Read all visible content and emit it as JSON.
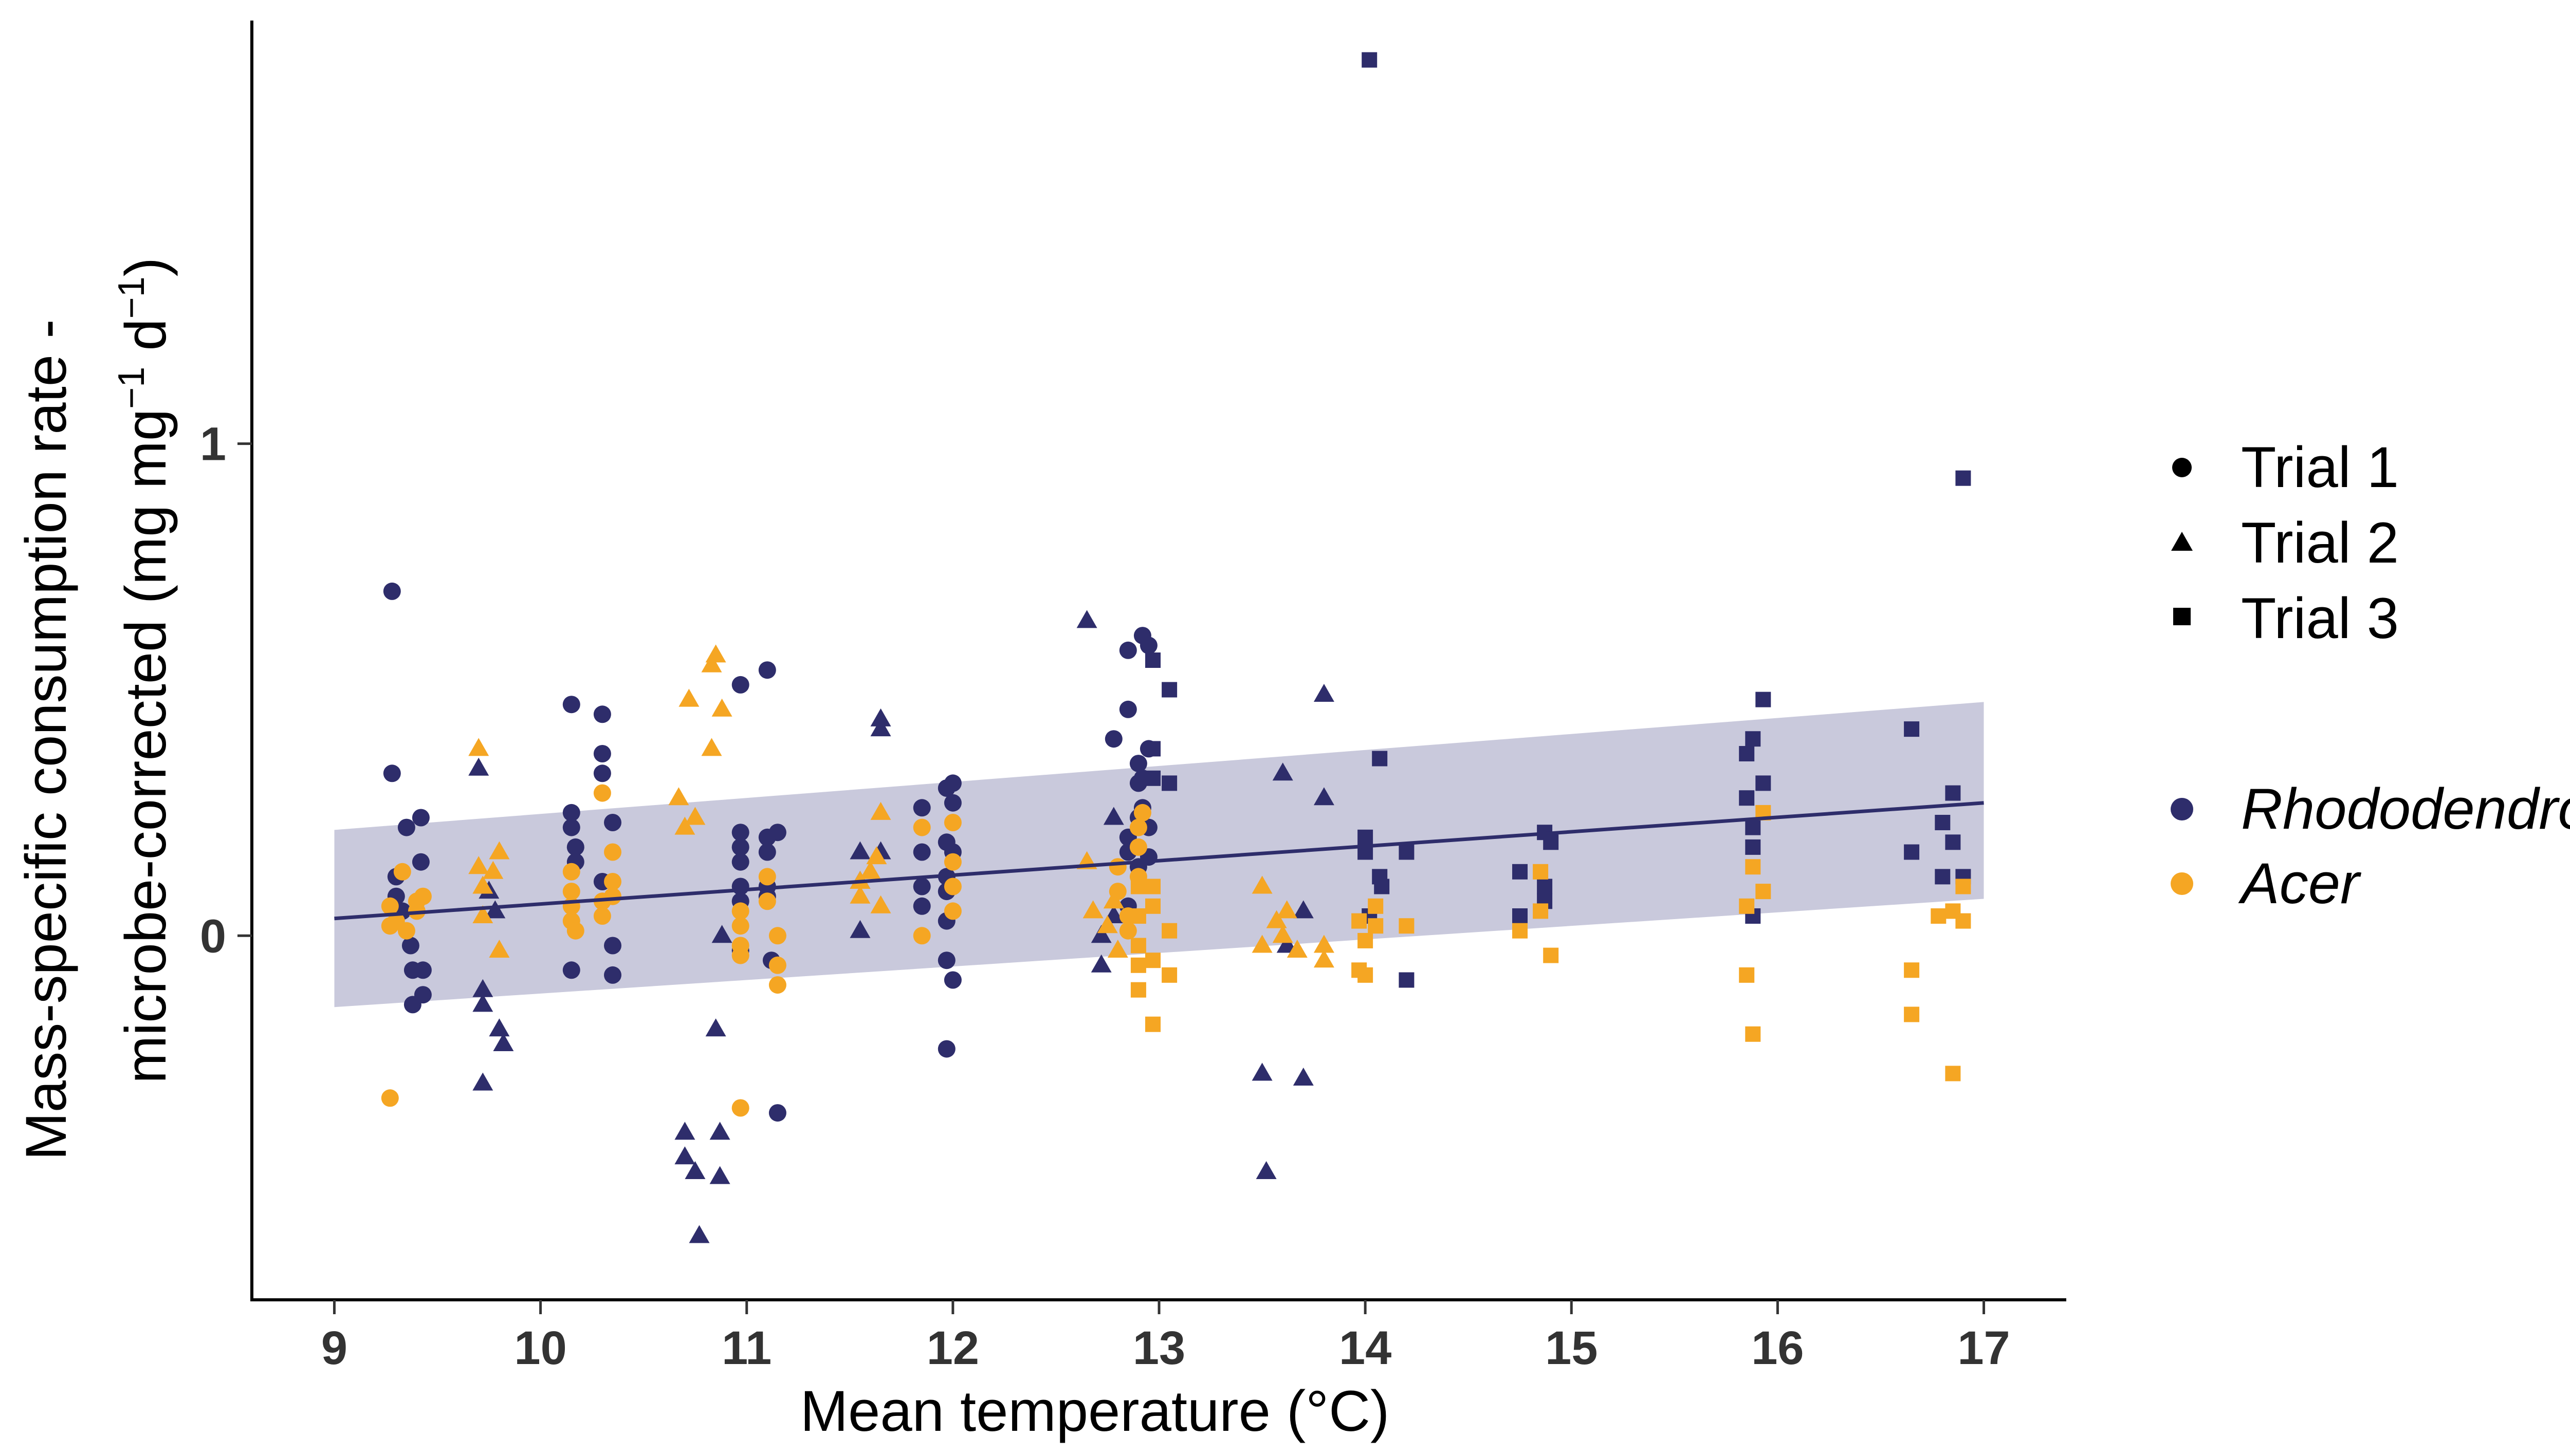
{
  "chart_data": {
    "type": "scatter",
    "title": "",
    "xlabel": "Mean temperature (°C)",
    "ylabel_line1": "Mass-specific consumption rate -",
    "ylabel_line2_prefix": "microbe-corrected (mg mg",
    "ylabel_sup1": "−1",
    "ylabel_mid": " d",
    "ylabel_sup2": "−1",
    "ylabel_suffix": ")",
    "xlim": [
      8.6,
      17.4
    ],
    "ylim": [
      -0.74,
      1.86
    ],
    "x_ticks": [
      9,
      10,
      11,
      12,
      13,
      14,
      15,
      16,
      17
    ],
    "x_tick_labels": [
      "9",
      "10",
      "11",
      "12",
      "13",
      "14",
      "15",
      "16",
      "17"
    ],
    "y_ticks": [
      0,
      1
    ],
    "y_tick_labels": [
      "0",
      "1"
    ],
    "grid": false,
    "legend_position": "right",
    "legend_shape": {
      "title": "",
      "entries": [
        {
          "label": "Trial 1",
          "shape": "circle"
        },
        {
          "label": "Trial 2",
          "shape": "triangle"
        },
        {
          "label": "Trial 3",
          "shape": "square"
        }
      ]
    },
    "legend_species": {
      "title": "",
      "entries": [
        {
          "label": "Rhododendron",
          "color": "#2e2d6b"
        },
        {
          "label": "Acer",
          "color": "#f5a623"
        }
      ]
    },
    "colors": {
      "Rhododendron": "#2e2d6b",
      "Acer": "#f5a623",
      "fit_line": "#2e2d6b",
      "ribbon": "#c9c9dc"
    },
    "fit": {
      "x": [
        9,
        17
      ],
      "y": [
        0.035,
        0.27
      ],
      "ci_lower": [
        -0.145,
        0.075
      ],
      "ci_upper": [
        0.215,
        0.475
      ]
    },
    "series": [
      {
        "species": "Rhododendron",
        "trial": 1,
        "shape": "circle",
        "color": "#2e2d6b",
        "points": [
          [
            9.28,
            0.7
          ],
          [
            9.28,
            0.33
          ],
          [
            9.3,
            0.12
          ],
          [
            9.3,
            0.08
          ],
          [
            9.33,
            0.05
          ],
          [
            9.35,
            0.22
          ],
          [
            9.37,
            -0.02
          ],
          [
            9.38,
            -0.07
          ],
          [
            9.38,
            -0.14
          ],
          [
            9.42,
            0.24
          ],
          [
            9.42,
            0.15
          ],
          [
            9.43,
            -0.07
          ],
          [
            9.43,
            -0.12
          ],
          [
            10.15,
            0.47
          ],
          [
            10.15,
            0.25
          ],
          [
            10.15,
            0.22
          ],
          [
            10.17,
            0.18
          ],
          [
            10.17,
            0.15
          ],
          [
            10.15,
            -0.07
          ],
          [
            10.3,
            0.45
          ],
          [
            10.3,
            0.37
          ],
          [
            10.3,
            0.33
          ],
          [
            10.3,
            0.11
          ],
          [
            10.35,
            0.23
          ],
          [
            10.35,
            -0.02
          ],
          [
            10.35,
            -0.08
          ],
          [
            10.97,
            0.51
          ],
          [
            10.97,
            0.21
          ],
          [
            10.97,
            0.18
          ],
          [
            10.97,
            0.15
          ],
          [
            10.97,
            0.1
          ],
          [
            10.97,
            0.07
          ],
          [
            10.97,
            -0.03
          ],
          [
            11.1,
            0.54
          ],
          [
            11.1,
            0.2
          ],
          [
            11.1,
            0.17
          ],
          [
            11.1,
            0.1
          ],
          [
            11.1,
            0.08
          ],
          [
            11.12,
            -0.05
          ],
          [
            11.15,
            0.21
          ],
          [
            11.15,
            -0.36
          ],
          [
            11.85,
            0.26
          ],
          [
            11.85,
            0.17
          ],
          [
            11.85,
            0.1
          ],
          [
            11.85,
            0.06
          ],
          [
            11.97,
            0.3
          ],
          [
            11.97,
            0.19
          ],
          [
            11.97,
            0.12
          ],
          [
            11.97,
            0.09
          ],
          [
            11.97,
            0.03
          ],
          [
            11.97,
            -0.05
          ],
          [
            11.97,
            -0.23
          ],
          [
            12.0,
            0.31
          ],
          [
            12.0,
            0.27
          ],
          [
            12.0,
            0.17
          ],
          [
            12.0,
            -0.09
          ],
          [
            12.78,
            0.4
          ],
          [
            12.85,
            0.58
          ],
          [
            12.85,
            0.46
          ],
          [
            12.85,
            0.2
          ],
          [
            12.85,
            0.17
          ],
          [
            12.85,
            0.06
          ],
          [
            12.9,
            0.35
          ],
          [
            12.9,
            0.31
          ],
          [
            12.9,
            0.24
          ],
          [
            12.9,
            0.14
          ],
          [
            12.92,
            0.61
          ],
          [
            12.92,
            0.32
          ],
          [
            12.92,
            0.26
          ],
          [
            12.95,
            0.59
          ],
          [
            12.95,
            0.38
          ],
          [
            12.95,
            0.22
          ],
          [
            12.95,
            0.16
          ]
        ]
      },
      {
        "species": "Rhododendron",
        "trial": 2,
        "shape": "triangle",
        "color": "#2e2d6b",
        "points": [
          [
            9.7,
            0.34
          ],
          [
            9.72,
            -0.11
          ],
          [
            9.72,
            -0.14
          ],
          [
            9.72,
            -0.3
          ],
          [
            9.75,
            0.09
          ],
          [
            9.78,
            0.05
          ],
          [
            9.8,
            -0.19
          ],
          [
            9.82,
            -0.22
          ],
          [
            10.7,
            -0.4
          ],
          [
            10.7,
            -0.45
          ],
          [
            10.75,
            -0.48
          ],
          [
            10.77,
            -0.61
          ],
          [
            10.85,
            -0.19
          ],
          [
            10.87,
            -0.4
          ],
          [
            10.87,
            -0.49
          ],
          [
            10.88,
            0.0
          ],
          [
            11.55,
            0.17
          ],
          [
            11.55,
            0.11
          ],
          [
            11.55,
            0.01
          ],
          [
            11.65,
            0.44
          ],
          [
            11.65,
            0.42
          ],
          [
            11.65,
            0.17
          ],
          [
            12.65,
            0.64
          ],
          [
            12.72,
            0.0
          ],
          [
            12.72,
            -0.06
          ],
          [
            12.78,
            0.24
          ],
          [
            12.78,
            0.04
          ],
          [
            13.5,
            -0.28
          ],
          [
            13.52,
            -0.48
          ],
          [
            13.6,
            0.33
          ],
          [
            13.62,
            -0.02
          ],
          [
            13.7,
            0.05
          ],
          [
            13.7,
            -0.29
          ],
          [
            13.8,
            0.49
          ],
          [
            13.8,
            0.28
          ]
        ]
      },
      {
        "species": "Rhododendron",
        "trial": 3,
        "shape": "square",
        "color": "#2e2d6b",
        "points": [
          [
            12.97,
            0.56
          ],
          [
            12.97,
            0.38
          ],
          [
            12.97,
            0.32
          ],
          [
            13.05,
            0.5
          ],
          [
            13.05,
            0.31
          ],
          [
            14.02,
            1.78
          ],
          [
            14.0,
            0.2
          ],
          [
            14.0,
            0.17
          ],
          [
            14.02,
            0.04
          ],
          [
            14.07,
            0.36
          ],
          [
            14.07,
            0.12
          ],
          [
            14.08,
            0.1
          ],
          [
            14.2,
            0.17
          ],
          [
            14.2,
            -0.09
          ],
          [
            14.75,
            0.13
          ],
          [
            14.75,
            0.04
          ],
          [
            14.87,
            0.21
          ],
          [
            14.87,
            0.1
          ],
          [
            14.87,
            0.07
          ],
          [
            14.9,
            0.19
          ],
          [
            15.85,
            0.37
          ],
          [
            15.85,
            0.28
          ],
          [
            15.88,
            0.4
          ],
          [
            15.88,
            0.22
          ],
          [
            15.88,
            0.18
          ],
          [
            15.88,
            0.04
          ],
          [
            15.93,
            0.48
          ],
          [
            15.93,
            0.31
          ],
          [
            16.65,
            0.42
          ],
          [
            16.65,
            0.17
          ],
          [
            16.8,
            0.23
          ],
          [
            16.8,
            0.12
          ],
          [
            16.85,
            0.29
          ],
          [
            16.85,
            0.19
          ],
          [
            16.9,
            0.93
          ],
          [
            16.9,
            0.12
          ]
        ]
      },
      {
        "species": "Acer",
        "trial": 1,
        "shape": "circle",
        "color": "#f5a623",
        "points": [
          [
            9.27,
            -0.33
          ],
          [
            9.27,
            0.06
          ],
          [
            9.27,
            0.02
          ],
          [
            9.3,
            0.03
          ],
          [
            9.33,
            0.13
          ],
          [
            9.35,
            0.01
          ],
          [
            9.4,
            0.07
          ],
          [
            9.4,
            0.05
          ],
          [
            9.43,
            0.08
          ],
          [
            10.15,
            0.13
          ],
          [
            10.15,
            0.09
          ],
          [
            10.15,
            0.06
          ],
          [
            10.15,
            0.03
          ],
          [
            10.17,
            0.01
          ],
          [
            10.3,
            0.29
          ],
          [
            10.3,
            0.07
          ],
          [
            10.3,
            0.04
          ],
          [
            10.35,
            0.17
          ],
          [
            10.35,
            0.11
          ],
          [
            10.35,
            0.08
          ],
          [
            10.97,
            0.05
          ],
          [
            10.97,
            0.02
          ],
          [
            10.97,
            -0.02
          ],
          [
            10.97,
            -0.04
          ],
          [
            10.97,
            -0.35
          ],
          [
            11.1,
            0.12
          ],
          [
            11.1,
            0.07
          ],
          [
            11.15,
            0.0
          ],
          [
            11.15,
            -0.06
          ],
          [
            11.15,
            -0.1
          ],
          [
            11.85,
            0.22
          ],
          [
            11.85,
            0.0
          ],
          [
            12.0,
            0.23
          ],
          [
            12.0,
            0.15
          ],
          [
            12.0,
            0.1
          ],
          [
            12.0,
            0.05
          ],
          [
            12.8,
            0.14
          ],
          [
            12.8,
            0.09
          ],
          [
            12.85,
            0.04
          ],
          [
            12.85,
            0.01
          ],
          [
            12.9,
            0.22
          ],
          [
            12.9,
            0.18
          ],
          [
            12.9,
            0.12
          ],
          [
            12.92,
            0.25
          ]
        ]
      },
      {
        "species": "Acer",
        "trial": 2,
        "shape": "triangle",
        "color": "#f5a623",
        "points": [
          [
            9.7,
            0.38
          ],
          [
            9.7,
            0.14
          ],
          [
            9.72,
            0.1
          ],
          [
            9.72,
            0.04
          ],
          [
            9.77,
            0.13
          ],
          [
            9.8,
            0.17
          ],
          [
            9.8,
            -0.03
          ],
          [
            10.67,
            0.28
          ],
          [
            10.7,
            0.22
          ],
          [
            10.72,
            0.48
          ],
          [
            10.75,
            0.24
          ],
          [
            10.83,
            0.38
          ],
          [
            10.83,
            0.55
          ],
          [
            10.85,
            0.57
          ],
          [
            10.88,
            0.46
          ],
          [
            11.55,
            0.11
          ],
          [
            11.55,
            0.08
          ],
          [
            11.6,
            0.13
          ],
          [
            11.63,
            0.16
          ],
          [
            11.65,
            0.25
          ],
          [
            11.65,
            0.06
          ],
          [
            12.65,
            0.15
          ],
          [
            12.68,
            0.05
          ],
          [
            12.75,
            0.02
          ],
          [
            12.78,
            0.07
          ],
          [
            12.8,
            -0.03
          ],
          [
            13.5,
            0.1
          ],
          [
            13.5,
            -0.02
          ],
          [
            13.57,
            0.03
          ],
          [
            13.6,
            0.0
          ],
          [
            13.62,
            0.05
          ],
          [
            13.67,
            -0.03
          ],
          [
            13.8,
            -0.02
          ],
          [
            13.8,
            -0.05
          ]
        ]
      },
      {
        "species": "Acer",
        "trial": 3,
        "shape": "square",
        "color": "#f5a623",
        "points": [
          [
            12.9,
            0.1
          ],
          [
            12.9,
            0.04
          ],
          [
            12.9,
            -0.02
          ],
          [
            12.9,
            -0.06
          ],
          [
            12.9,
            -0.11
          ],
          [
            12.97,
            0.1
          ],
          [
            12.97,
            0.06
          ],
          [
            12.97,
            -0.05
          ],
          [
            12.97,
            -0.18
          ],
          [
            13.05,
            0.01
          ],
          [
            13.05,
            -0.08
          ],
          [
            13.97,
            0.03
          ],
          [
            13.97,
            -0.07
          ],
          [
            14.0,
            -0.01
          ],
          [
            14.0,
            -0.08
          ],
          [
            14.05,
            0.06
          ],
          [
            14.05,
            0.02
          ],
          [
            14.2,
            0.02
          ],
          [
            14.75,
            0.01
          ],
          [
            14.85,
            0.13
          ],
          [
            14.85,
            0.05
          ],
          [
            14.9,
            -0.04
          ],
          [
            15.85,
            0.06
          ],
          [
            15.85,
            -0.08
          ],
          [
            15.88,
            0.14
          ],
          [
            15.88,
            -0.2
          ],
          [
            15.93,
            0.25
          ],
          [
            15.93,
            0.09
          ],
          [
            16.65,
            -0.07
          ],
          [
            16.65,
            -0.16
          ],
          [
            16.78,
            0.04
          ],
          [
            16.85,
            0.05
          ],
          [
            16.85,
            -0.28
          ],
          [
            16.9,
            0.03
          ],
          [
            16.9,
            0.1
          ]
        ]
      }
    ]
  }
}
